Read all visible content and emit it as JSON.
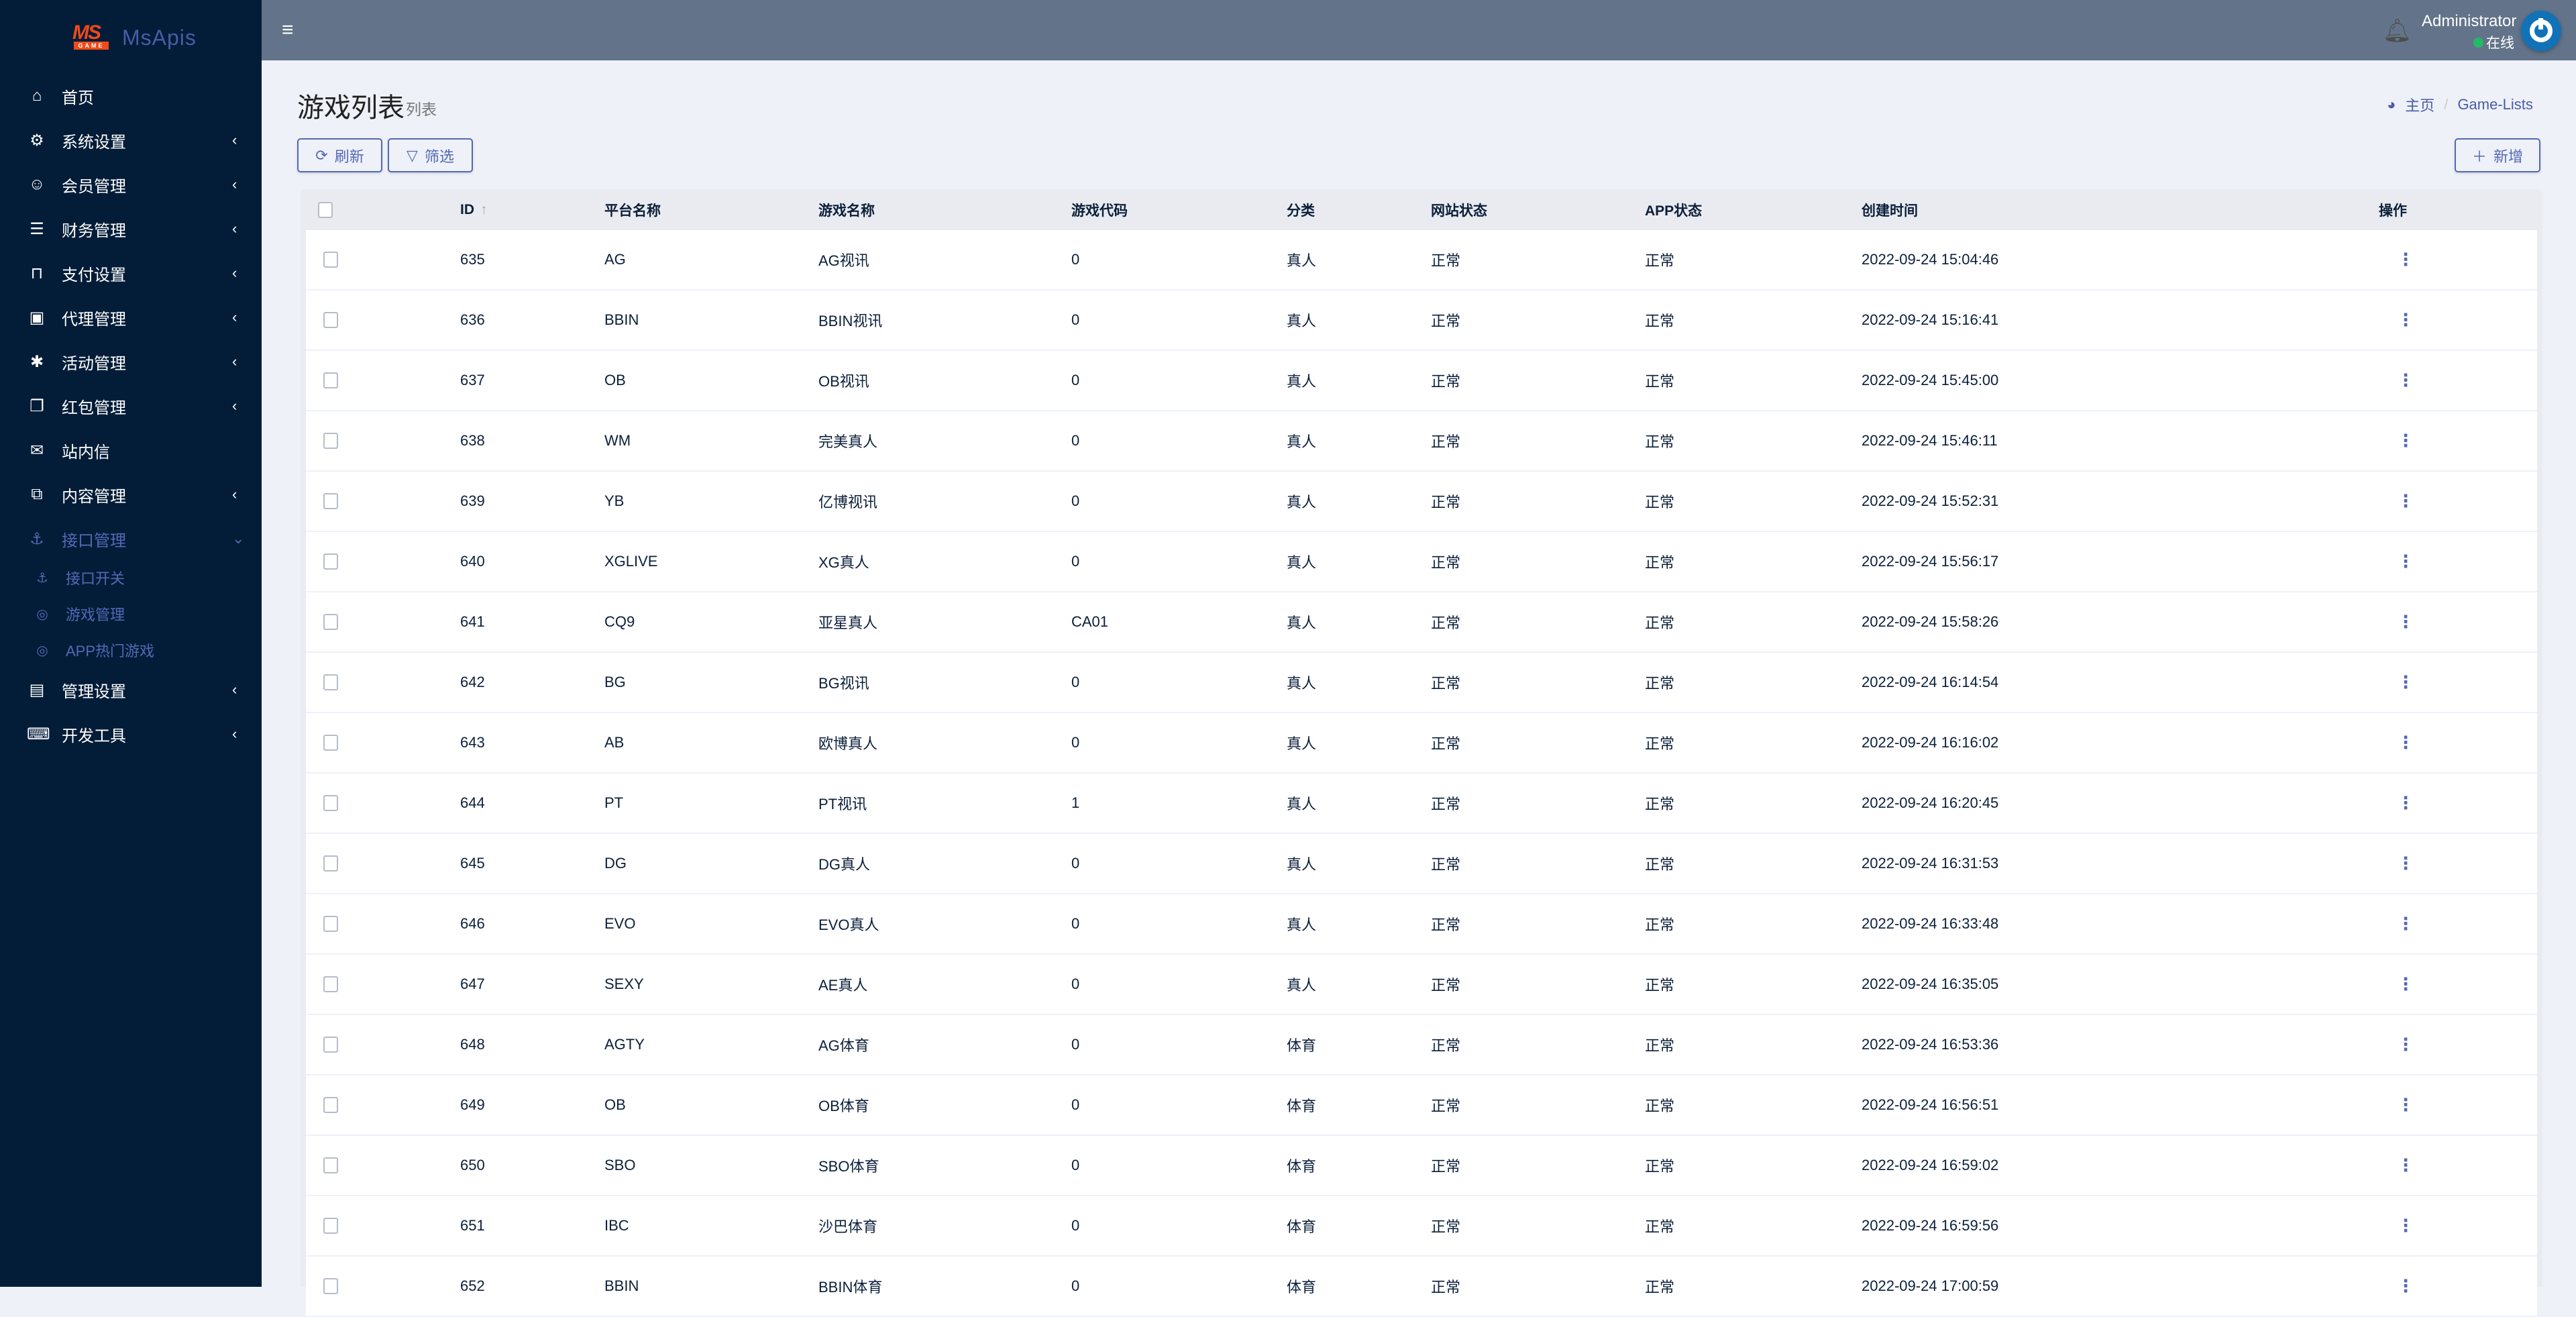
{
  "brand": {
    "logo_text": "MS",
    "logo_sub": "GAME",
    "name": "MsApis"
  },
  "sidebar": {
    "items": [
      {
        "icon": "home-icon",
        "glyph": "⌂",
        "label": "首页",
        "chevron": false
      },
      {
        "icon": "cogs-icon",
        "glyph": "⚙",
        "label": "系统设置",
        "chevron": true
      },
      {
        "icon": "user-icon",
        "glyph": "☺",
        "label": "会员管理",
        "chevron": true
      },
      {
        "icon": "database-icon",
        "glyph": "☰",
        "label": "财务管理",
        "chevron": true
      },
      {
        "icon": "bookmark-icon",
        "glyph": "⊓",
        "label": "支付设置",
        "chevron": true
      },
      {
        "icon": "id-badge-icon",
        "glyph": "▣",
        "label": "代理管理",
        "chevron": true
      },
      {
        "icon": "yelp-icon",
        "glyph": "✱",
        "label": "活动管理",
        "chevron": true
      },
      {
        "icon": "clone-icon",
        "glyph": "❐",
        "label": "红包管理",
        "chevron": true
      },
      {
        "icon": "envelope-icon",
        "glyph": "✉",
        "label": "站内信",
        "chevron": false
      },
      {
        "icon": "copy-icon",
        "glyph": "⧉",
        "label": "内容管理",
        "chevron": true
      },
      {
        "icon": "anchor-icon",
        "glyph": "⚓",
        "label": "接口管理",
        "chevron": true,
        "expanded": true
      }
    ],
    "subitems": [
      {
        "icon": "anchor-icon",
        "glyph": "⚓",
        "label": "接口开关"
      },
      {
        "icon": "gamepad-icon",
        "glyph": "◎",
        "label": "游戏管理"
      },
      {
        "icon": "gamepad-icon",
        "glyph": "◎",
        "label": "APP热门游戏"
      }
    ],
    "bottom_items": [
      {
        "icon": "address-card-icon",
        "glyph": "▤",
        "label": "管理设置",
        "chevron": true
      },
      {
        "icon": "keyboard-icon",
        "glyph": "⌨",
        "label": "开发工具",
        "chevron": true
      }
    ]
  },
  "header": {
    "user": "Administrator",
    "status": "在线"
  },
  "page": {
    "title": "游戏列表",
    "subtitle": "列表"
  },
  "breadcrumb": {
    "home": "主页",
    "current": "Game-Lists"
  },
  "toolbar": {
    "refresh": "刷新",
    "filter": "筛选",
    "add": "新增"
  },
  "colors": {
    "sidebar": "#031d38",
    "header": "#63748a",
    "accent": "#5468b5",
    "online": "#22bb66"
  },
  "table": {
    "columns": [
      "ID",
      "平台名称",
      "游戏名称",
      "游戏代码",
      "分类",
      "网站状态",
      "APP状态",
      "创建时间",
      "操作"
    ],
    "rows": [
      [
        "635",
        "AG",
        "AG视讯",
        "0",
        "真人",
        "正常",
        "正常",
        "2022-09-24 15:04:46"
      ],
      [
        "636",
        "BBIN",
        "BBIN视讯",
        "0",
        "真人",
        "正常",
        "正常",
        "2022-09-24 15:16:41"
      ],
      [
        "637",
        "OB",
        "OB视讯",
        "0",
        "真人",
        "正常",
        "正常",
        "2022-09-24 15:45:00"
      ],
      [
        "638",
        "WM",
        "完美真人",
        "0",
        "真人",
        "正常",
        "正常",
        "2022-09-24 15:46:11"
      ],
      [
        "639",
        "YB",
        "亿博视讯",
        "0",
        "真人",
        "正常",
        "正常",
        "2022-09-24 15:52:31"
      ],
      [
        "640",
        "XGLIVE",
        "XG真人",
        "0",
        "真人",
        "正常",
        "正常",
        "2022-09-24 15:56:17"
      ],
      [
        "641",
        "CQ9",
        "亚星真人",
        "CA01",
        "真人",
        "正常",
        "正常",
        "2022-09-24 15:58:26"
      ],
      [
        "642",
        "BG",
        "BG视讯",
        "0",
        "真人",
        "正常",
        "正常",
        "2022-09-24 16:14:54"
      ],
      [
        "643",
        "AB",
        "欧博真人",
        "0",
        "真人",
        "正常",
        "正常",
        "2022-09-24 16:16:02"
      ],
      [
        "644",
        "PT",
        "PT视讯",
        "1",
        "真人",
        "正常",
        "正常",
        "2022-09-24 16:20:45"
      ],
      [
        "645",
        "DG",
        "DG真人",
        "0",
        "真人",
        "正常",
        "正常",
        "2022-09-24 16:31:53"
      ],
      [
        "646",
        "EVO",
        "EVO真人",
        "0",
        "真人",
        "正常",
        "正常",
        "2022-09-24 16:33:48"
      ],
      [
        "647",
        "SEXY",
        "AE真人",
        "0",
        "真人",
        "正常",
        "正常",
        "2022-09-24 16:35:05"
      ],
      [
        "648",
        "AGTY",
        "AG体育",
        "0",
        "体育",
        "正常",
        "正常",
        "2022-09-24 16:53:36"
      ],
      [
        "649",
        "OB",
        "OB体育",
        "0",
        "体育",
        "正常",
        "正常",
        "2022-09-24 16:56:51"
      ],
      [
        "650",
        "SBO",
        "SBO体育",
        "0",
        "体育",
        "正常",
        "正常",
        "2022-09-24 16:59:02"
      ],
      [
        "651",
        "IBC",
        "沙巴体育",
        "0",
        "体育",
        "正常",
        "正常",
        "2022-09-24 16:59:56"
      ],
      [
        "652",
        "BBIN",
        "BBIN体育",
        "0",
        "体育",
        "正常",
        "正常",
        "2022-09-24 17:00:59"
      ]
    ]
  }
}
